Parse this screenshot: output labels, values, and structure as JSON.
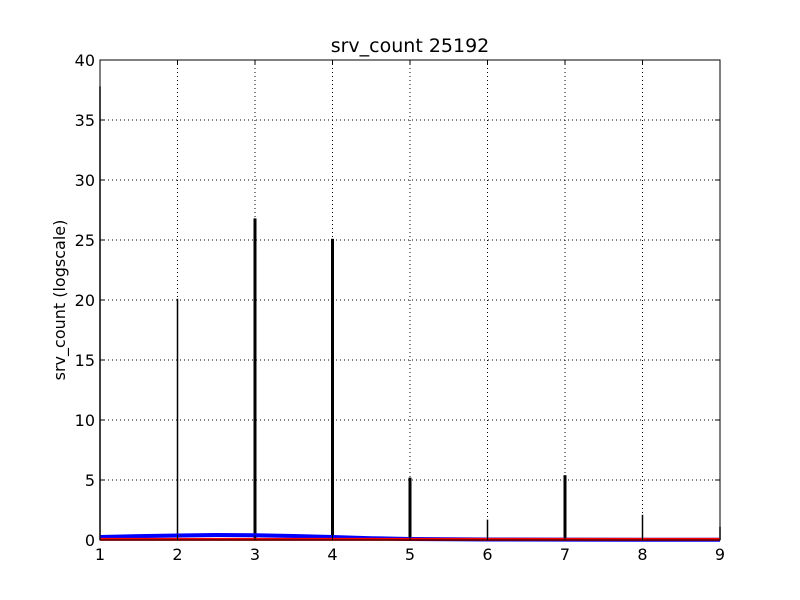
{
  "chart_data": {
    "type": "bar",
    "title": "srv_count 25192",
    "xlabel": "",
    "ylabel": "srv_count (logscale)",
    "xlim": [
      1,
      9
    ],
    "ylim": [
      0,
      40
    ],
    "xticks": [
      "1",
      "2",
      "3",
      "4",
      "5",
      "6",
      "7",
      "8",
      "9"
    ],
    "yticks": [
      "0",
      "5",
      "10",
      "15",
      "20",
      "25",
      "30",
      "35",
      "40"
    ],
    "grid": true,
    "grid_style": "dotted",
    "bars": [
      {
        "x": 1,
        "value": 37.8,
        "weight": 1
      },
      {
        "x": 2,
        "value": 20.1,
        "weight": 1
      },
      {
        "x": 3,
        "value": 26.8,
        "weight": 2
      },
      {
        "x": 4,
        "value": 25.1,
        "weight": 2
      },
      {
        "x": 5,
        "value": 5.2,
        "weight": 2
      },
      {
        "x": 6,
        "value": 1.7,
        "weight": 1
      },
      {
        "x": 7,
        "value": 5.4,
        "weight": 2
      },
      {
        "x": 8,
        "value": 2.1,
        "weight": 1
      },
      {
        "x": 9,
        "value": 1.1,
        "weight": 1
      }
    ],
    "series": [
      {
        "color": "#0000ff",
        "x": [
          1,
          1.5,
          2,
          2.5,
          3,
          3.5,
          4,
          4.5,
          5,
          6,
          7,
          8,
          9
        ],
        "values": [
          0.25,
          0.32,
          0.38,
          0.42,
          0.4,
          0.33,
          0.25,
          0.15,
          0.08,
          0.04,
          0.03,
          0.02,
          0.02
        ]
      },
      {
        "color": "#ff0000",
        "x": [
          1,
          2,
          3,
          4,
          5,
          6,
          7,
          8,
          9
        ],
        "values": [
          0.05,
          0.05,
          0.05,
          0.05,
          0.05,
          0.05,
          0.05,
          0.05,
          0.05
        ]
      }
    ],
    "colors": {
      "bars": "#000000",
      "grid": "#000000",
      "frame": "#000000"
    }
  }
}
